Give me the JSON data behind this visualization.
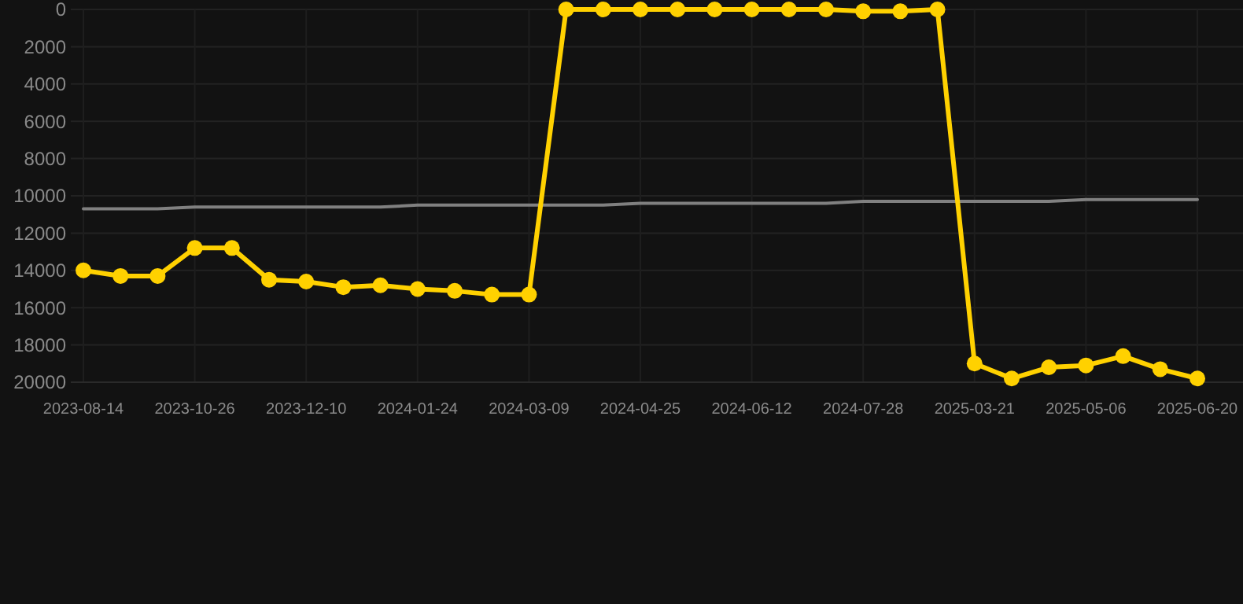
{
  "chart_data": {
    "type": "line",
    "categories": [
      "2023-08-14",
      null,
      null,
      "2023-10-26",
      null,
      null,
      "2023-12-10",
      null,
      null,
      "2024-01-24",
      null,
      null,
      "2024-03-09",
      null,
      null,
      "2024-04-25",
      null,
      null,
      "2024-06-12",
      null,
      null,
      "2024-07-28",
      null,
      null,
      "2025-03-21",
      null,
      null,
      "2025-05-06",
      null,
      null,
      "2025-06-20"
    ],
    "series": [
      {
        "color": "#ffd100",
        "marker": "circle",
        "values": [
          14000,
          14300,
          14300,
          12800,
          12800,
          14500,
          14600,
          14900,
          14800,
          15000,
          15100,
          15300,
          15300,
          0,
          0,
          0,
          0,
          0,
          0,
          0,
          0,
          100,
          100,
          0,
          19000,
          19800,
          19200,
          19100,
          18600,
          19300,
          19800
        ]
      },
      {
        "color": "#808080",
        "marker": "none",
        "values": [
          10700,
          10700,
          10700,
          10600,
          10600,
          10600,
          10600,
          10600,
          10600,
          10500,
          10500,
          10500,
          10500,
          10500,
          10500,
          10400,
          10400,
          10400,
          10400,
          10400,
          10400,
          10300,
          10300,
          10300,
          10300,
          10300,
          10300,
          10200,
          10200,
          10200,
          10200
        ]
      }
    ],
    "ylim": [
      20000,
      0
    ],
    "yticks": [
      0,
      2000,
      4000,
      6000,
      8000,
      10000,
      12000,
      14000,
      16000,
      18000,
      20000
    ],
    "grid": true
  }
}
